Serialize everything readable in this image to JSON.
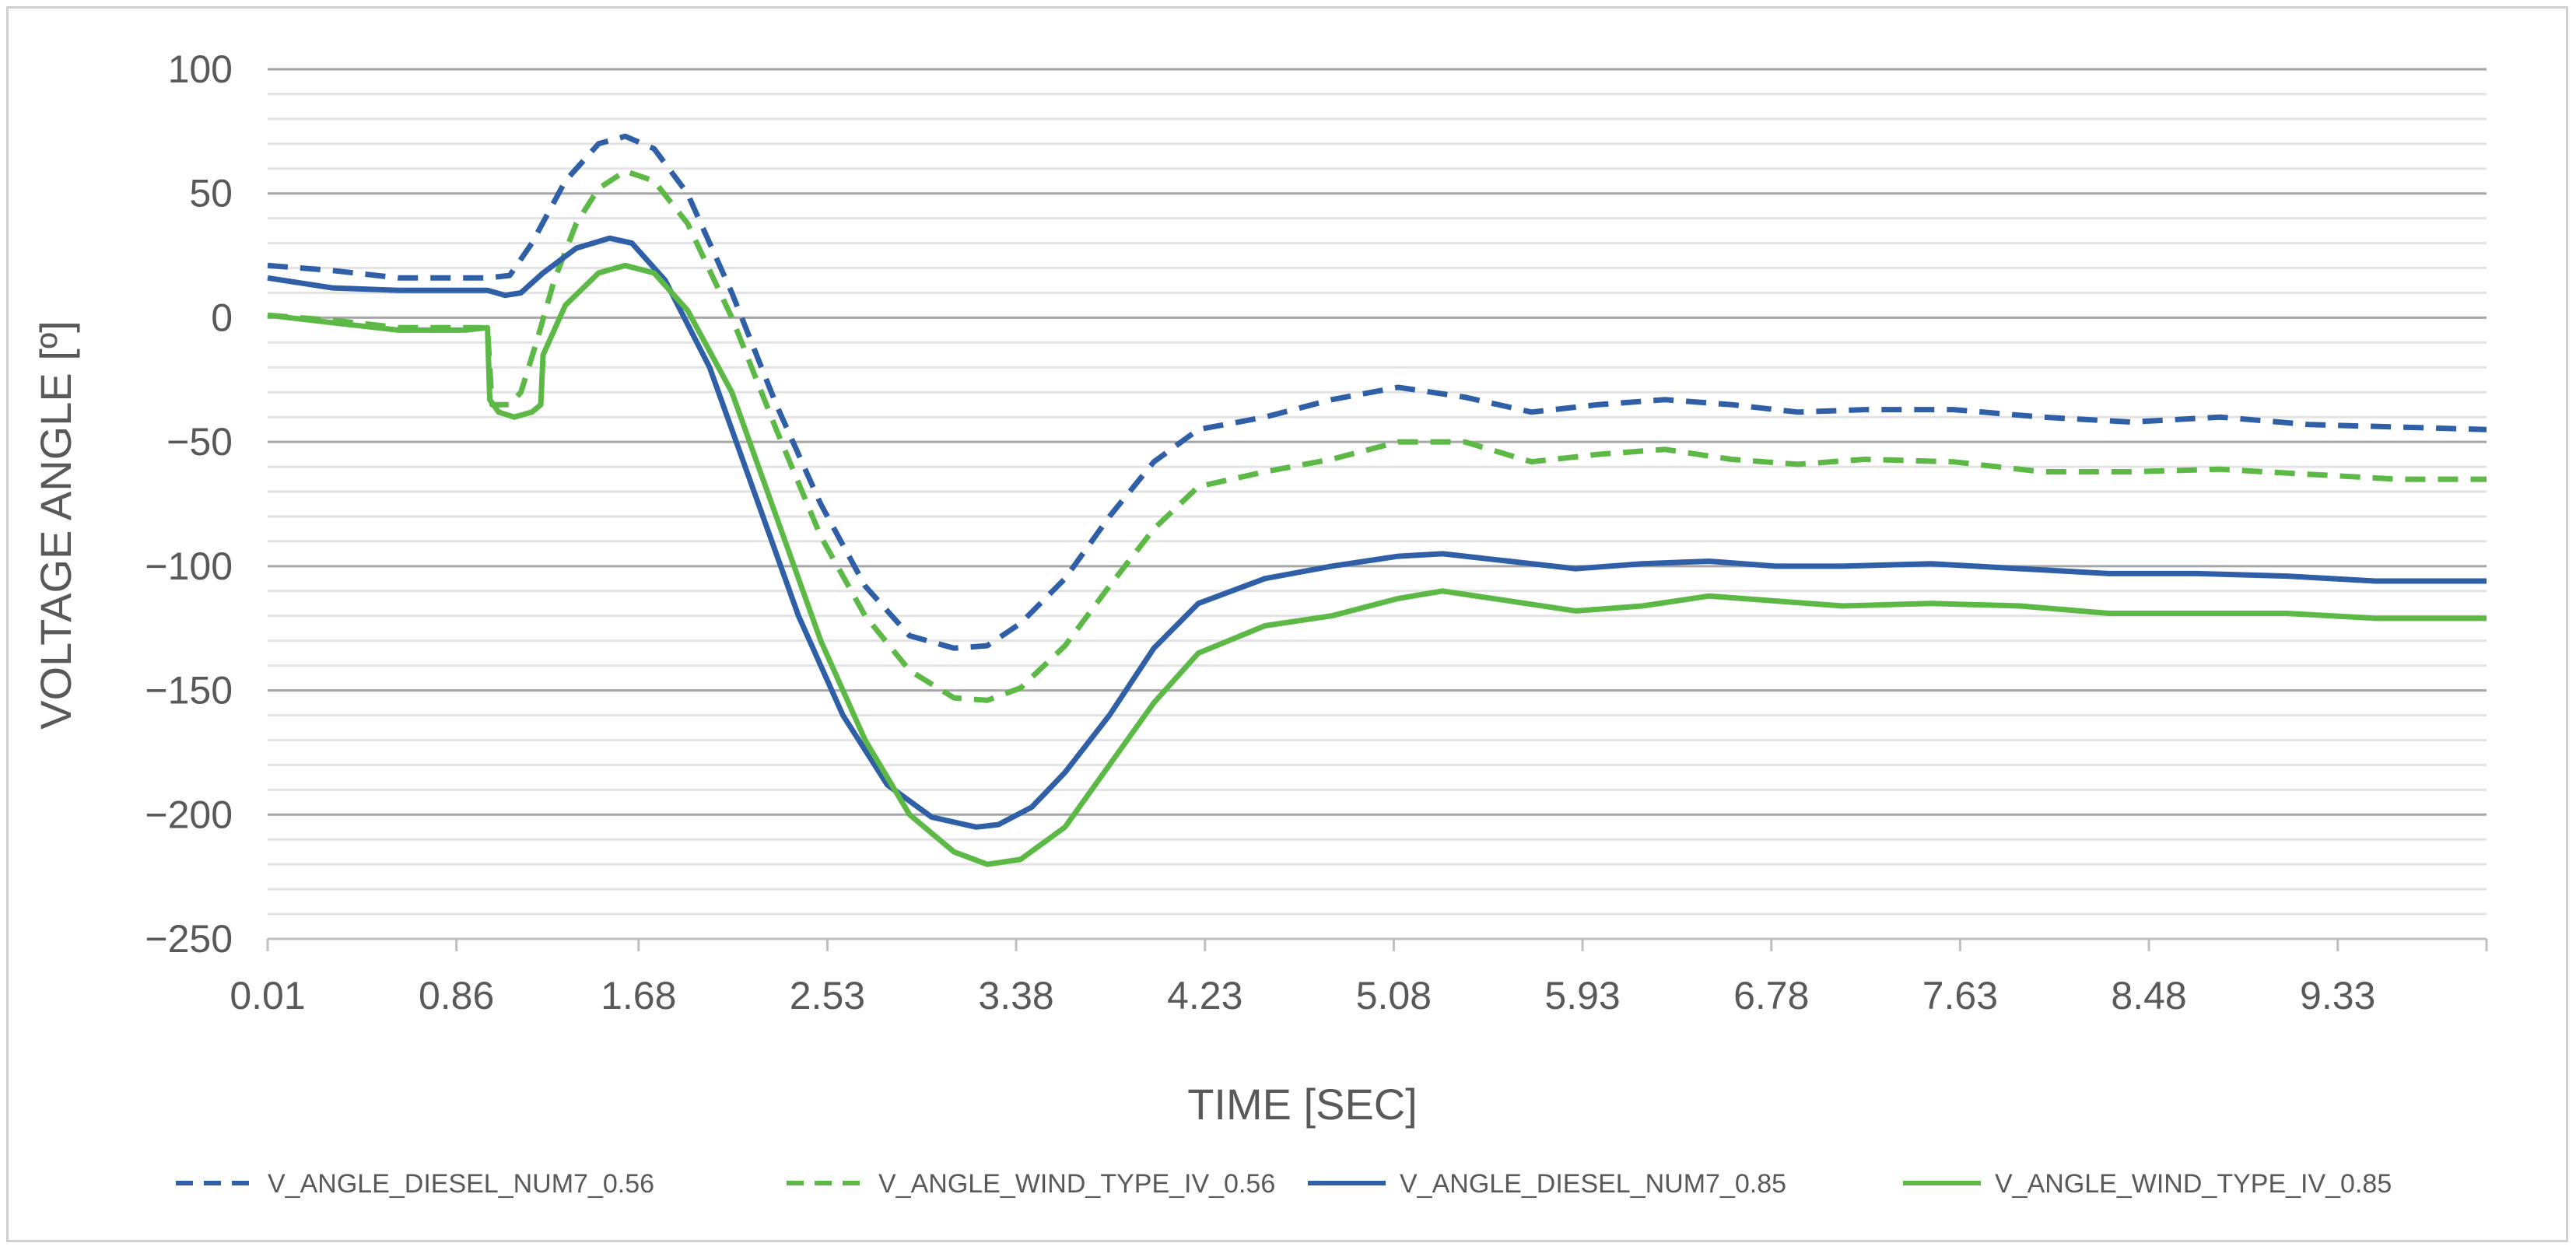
{
  "chart_data": {
    "type": "line",
    "title": "",
    "xlabel": "TIME [SEC]",
    "ylabel": "VOLTAGE ANGLE [º]",
    "ylim": [
      -250,
      100
    ],
    "xlim": [
      0.01,
      10.0
    ],
    "y_ticks": [
      100,
      50,
      0,
      -50,
      -100,
      -150,
      -200,
      -250
    ],
    "y_tick_labels": [
      "100",
      "50",
      "0",
      "−50",
      "−100",
      "−150",
      "−200",
      "−250"
    ],
    "x_ticks": [
      0.01,
      0.86,
      1.68,
      2.53,
      3.38,
      4.23,
      5.08,
      5.93,
      6.78,
      7.63,
      8.48,
      9.33
    ],
    "x_tick_labels": [
      "0.01",
      "0.86",
      "1.68",
      "2.53",
      "3.38",
      "4.23",
      "5.08",
      "5.93",
      "6.78",
      "7.63",
      "8.48",
      "9.33"
    ],
    "grid": "horizontal",
    "legend_position": "bottom",
    "series": [
      {
        "name": "V_ANGLE_DIESEL_NUM7_0.56",
        "color": "#2e5fa7",
        "dash": "dashed",
        "x": [
          0.01,
          0.3,
          0.6,
          1.0,
          1.1,
          1.2,
          1.35,
          1.5,
          1.62,
          1.75,
          1.9,
          2.1,
          2.3,
          2.5,
          2.7,
          2.9,
          3.1,
          3.25,
          3.4,
          3.6,
          3.8,
          4.0,
          4.2,
          4.5,
          4.8,
          5.1,
          5.4,
          5.7,
          6.0,
          6.3,
          6.6,
          6.9,
          7.2,
          7.6,
          8.0,
          8.4,
          8.8,
          9.2,
          9.6,
          10.0
        ],
        "y": [
          21,
          19,
          16,
          16,
          17,
          30,
          55,
          70,
          73,
          68,
          50,
          10,
          -35,
          -75,
          -108,
          -128,
          -133,
          -132,
          -123,
          -105,
          -80,
          -58,
          -45,
          -40,
          -33,
          -28,
          -32,
          -38,
          -35,
          -33,
          -35,
          -38,
          -37,
          -37,
          -40,
          -42,
          -40,
          -43,
          -44,
          -45
        ]
      },
      {
        "name": "V_ANGLE_WIND_TYPE_IV_0.56",
        "color": "#5cb946",
        "dash": "dashed",
        "x": [
          0.01,
          0.3,
          0.6,
          1.0,
          1.02,
          1.1,
          1.15,
          1.22,
          1.3,
          1.4,
          1.5,
          1.62,
          1.75,
          1.9,
          2.1,
          2.3,
          2.5,
          2.7,
          2.9,
          3.1,
          3.25,
          3.4,
          3.6,
          3.8,
          4.0,
          4.2,
          4.5,
          4.8,
          5.1,
          5.4,
          5.7,
          6.0,
          6.3,
          6.6,
          6.9,
          7.2,
          7.6,
          8.0,
          8.4,
          8.8,
          9.2,
          9.6,
          10.0
        ],
        "y": [
          1,
          -1,
          -4,
          -4,
          -35,
          -35,
          -30,
          -10,
          15,
          38,
          52,
          59,
          55,
          38,
          0,
          -45,
          -88,
          -120,
          -142,
          -153,
          -154,
          -149,
          -132,
          -108,
          -85,
          -68,
          -62,
          -57,
          -50,
          -50,
          -58,
          -55,
          -53,
          -57,
          -59,
          -57,
          -58,
          -62,
          -62,
          -61,
          -63,
          -65,
          -65
        ]
      },
      {
        "name": "V_ANGLE_DIESEL_NUM7_0.85",
        "color": "#2e5fa7",
        "dash": "solid",
        "x": [
          0.01,
          0.3,
          0.6,
          1.0,
          1.08,
          1.15,
          1.25,
          1.4,
          1.55,
          1.65,
          1.8,
          2.0,
          2.2,
          2.4,
          2.6,
          2.8,
          3.0,
          3.2,
          3.3,
          3.45,
          3.6,
          3.8,
          4.0,
          4.2,
          4.5,
          4.8,
          5.1,
          5.3,
          5.6,
          5.9,
          6.2,
          6.5,
          6.8,
          7.1,
          7.5,
          7.9,
          8.3,
          8.7,
          9.1,
          9.5,
          10.0
        ],
        "y": [
          16,
          12,
          11,
          11,
          9,
          10,
          18,
          28,
          32,
          30,
          15,
          -20,
          -70,
          -120,
          -160,
          -188,
          -201,
          -205,
          -204,
          -197,
          -183,
          -160,
          -133,
          -115,
          -105,
          -100,
          -96,
          -95,
          -98,
          -101,
          -99,
          -98,
          -100,
          -100,
          -99,
          -101,
          -103,
          -103,
          -104,
          -106,
          -106
        ]
      },
      {
        "name": "V_ANGLE_WIND_TYPE_IV_0.85",
        "color": "#5cb946",
        "dash": "solid",
        "x": [
          0.01,
          0.3,
          0.6,
          0.9,
          1.0,
          1.01,
          1.05,
          1.12,
          1.2,
          1.24,
          1.25,
          1.35,
          1.5,
          1.62,
          1.75,
          1.9,
          2.1,
          2.3,
          2.5,
          2.7,
          2.9,
          3.1,
          3.25,
          3.4,
          3.6,
          3.8,
          4.0,
          4.2,
          4.5,
          4.8,
          5.1,
          5.3,
          5.6,
          5.9,
          6.2,
          6.5,
          6.8,
          7.1,
          7.5,
          7.9,
          8.3,
          8.7,
          9.1,
          9.5,
          10.0
        ],
        "y": [
          1,
          -2,
          -5,
          -5,
          -4,
          -33,
          -38,
          -40,
          -38,
          -35,
          -15,
          5,
          18,
          21,
          18,
          3,
          -30,
          -80,
          -130,
          -170,
          -200,
          -215,
          -220,
          -218,
          -205,
          -180,
          -155,
          -135,
          -124,
          -120,
          -113,
          -110,
          -114,
          -118,
          -116,
          -112,
          -114,
          -116,
          -115,
          -116,
          -119,
          -119,
          -119,
          -121,
          -121
        ]
      }
    ]
  }
}
